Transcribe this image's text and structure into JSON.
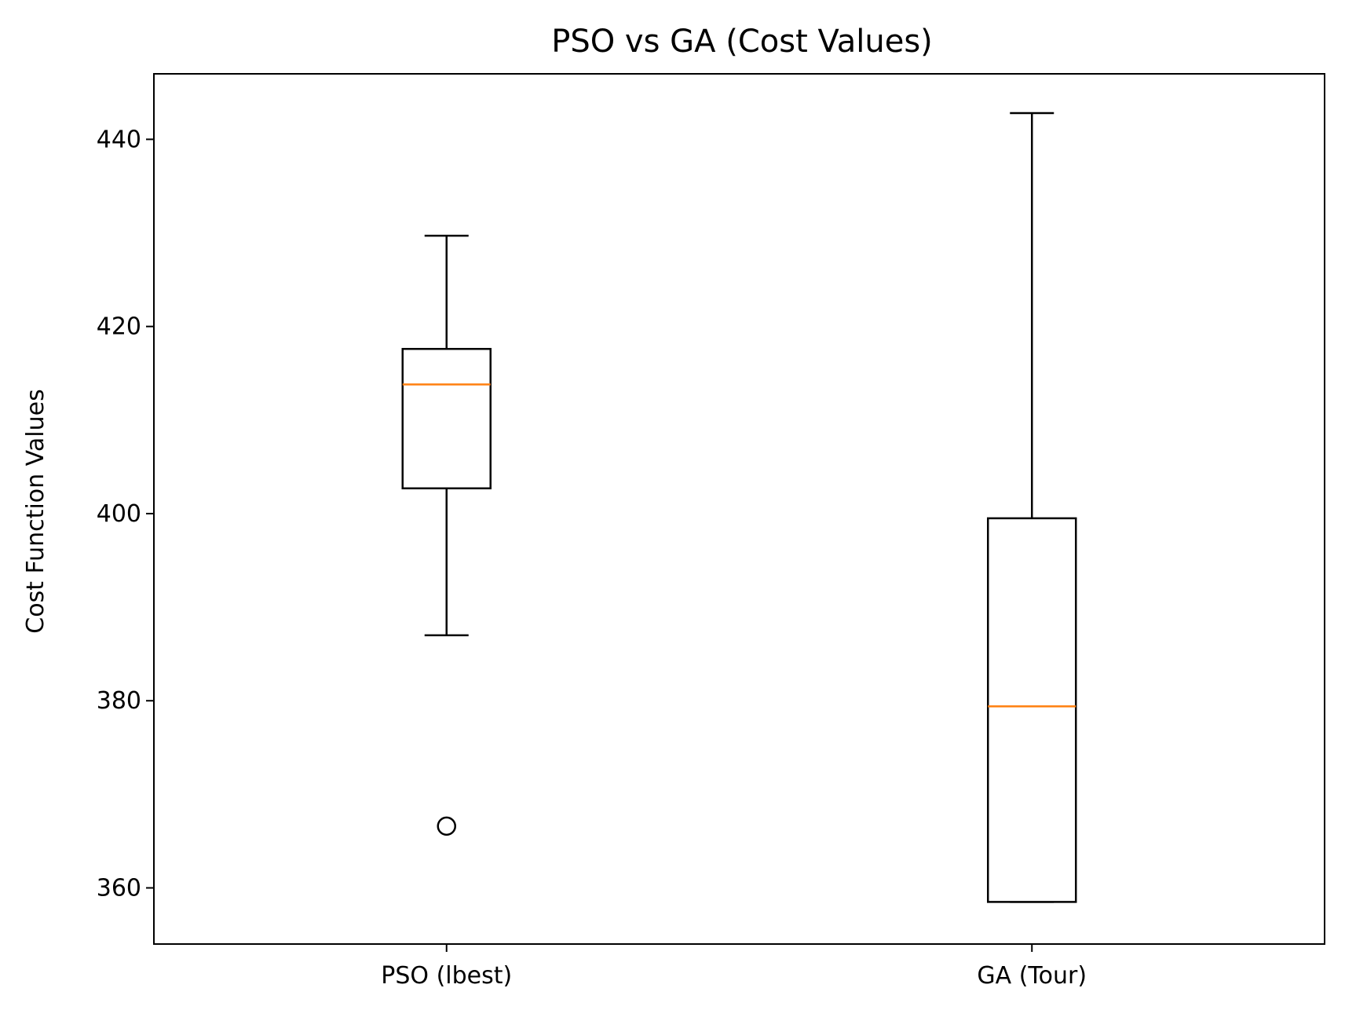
{
  "chart_data": {
    "type": "box",
    "title": "PSO vs GA (Cost Values)",
    "xlabel": "",
    "ylabel": "Cost Function Values",
    "ylim": [
      354,
      447
    ],
    "yticks": [
      360,
      380,
      400,
      420,
      440
    ],
    "grid": false,
    "categories": [
      "PSO (lbest)",
      "GA (Tour)"
    ],
    "boxes": [
      {
        "label": "PSO (lbest)",
        "whisker_low": 387.0,
        "q1": 402.7,
        "median": 413.8,
        "q3": 417.6,
        "whisker_high": 429.7,
        "outliers": [
          366.6
        ]
      },
      {
        "label": "GA (Tour)",
        "whisker_low": 358.5,
        "q1": 358.5,
        "median": 379.4,
        "q3": 399.5,
        "whisker_high": 442.8,
        "outliers": []
      }
    ],
    "colors": {
      "box": "#000000",
      "median": "#ff7f0e",
      "axes": "#000000"
    }
  }
}
